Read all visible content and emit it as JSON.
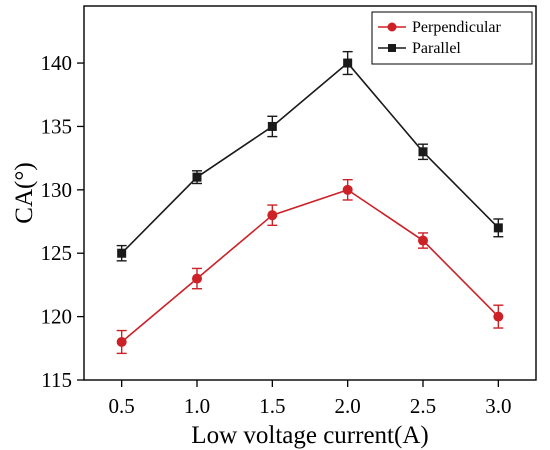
{
  "chart_data": {
    "type": "line",
    "xlabel": "Low voltage current(A)",
    "ylabel": "CA(°)",
    "x": [
      0.5,
      1.0,
      1.5,
      2.0,
      2.5,
      3.0
    ],
    "x_tick_labels": [
      "0.5",
      "1.0",
      "1.5",
      "2.0",
      "2.5",
      "3.0"
    ],
    "xlim": [
      0.25,
      3.25
    ],
    "y_ticks": [
      115,
      120,
      125,
      130,
      135,
      140
    ],
    "y_tick_labels": [
      "115",
      "120",
      "125",
      "130",
      "135",
      "140"
    ],
    "ylim": [
      115,
      144.5
    ],
    "grid": false,
    "legend_position": "top-right",
    "series": [
      {
        "name": "Perpendicular",
        "color": "#cc2127",
        "marker": "circle",
        "values": [
          118,
          123,
          128,
          130,
          126,
          120
        ],
        "errors": [
          0.9,
          0.8,
          0.8,
          0.8,
          0.6,
          0.9
        ]
      },
      {
        "name": "Parallel",
        "color": "#1a1a1a",
        "marker": "square",
        "values": [
          125,
          131,
          135,
          140,
          133,
          127
        ],
        "errors": [
          0.6,
          0.5,
          0.8,
          0.9,
          0.6,
          0.7
        ]
      }
    ]
  }
}
